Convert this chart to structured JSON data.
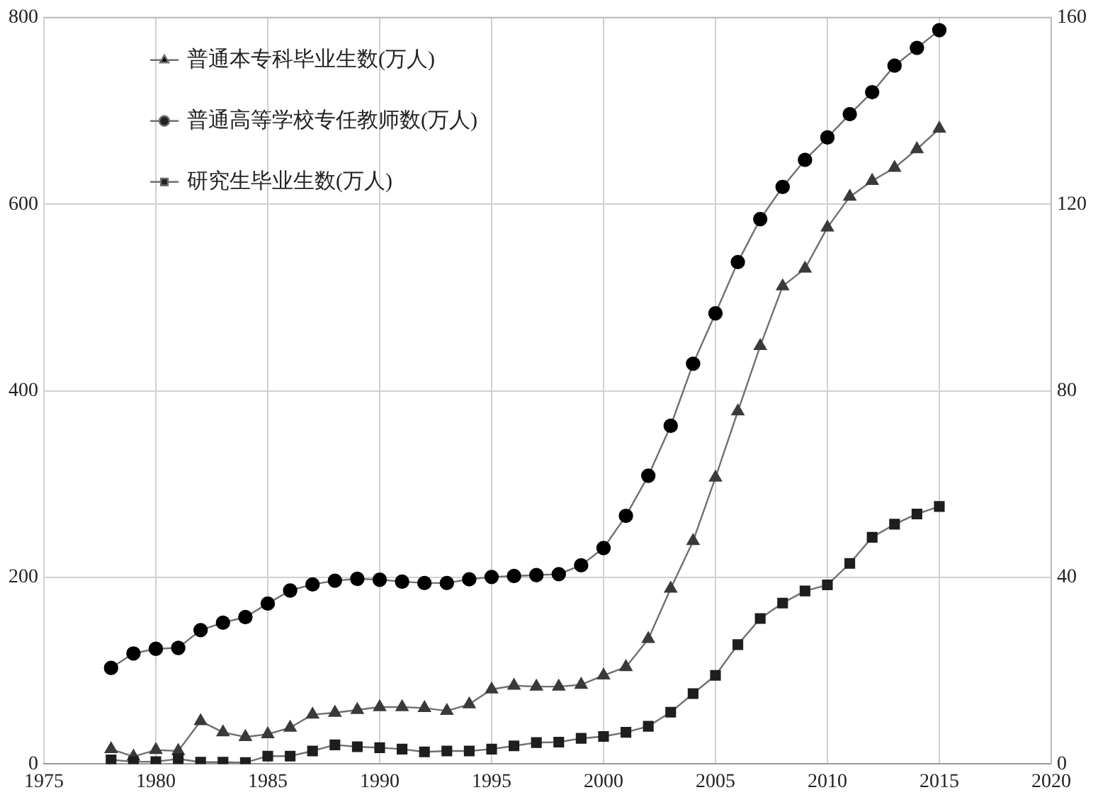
{
  "chart_data": {
    "type": "line",
    "x": [
      1978,
      1979,
      1980,
      1981,
      1982,
      1983,
      1984,
      1985,
      1986,
      1987,
      1988,
      1989,
      1990,
      1991,
      1992,
      1993,
      1994,
      1995,
      1996,
      1997,
      1998,
      1999,
      2000,
      2001,
      2002,
      2003,
      2004,
      2005,
      2006,
      2007,
      2008,
      2009,
      2010,
      2011,
      2012,
      2013,
      2014,
      2015
    ],
    "series": [
      {
        "name": "普通本专科毕业生数(万人)",
        "color": "#3a3a3a",
        "marker": "triangle",
        "values": [
          16,
          8,
          15,
          14,
          46,
          34,
          29,
          32,
          39,
          53,
          55,
          58,
          61,
          61,
          60,
          57,
          64,
          80,
          84,
          83,
          83,
          85,
          95,
          104,
          134,
          188,
          239,
          307,
          378,
          448,
          512,
          531,
          575,
          608,
          625,
          639,
          659,
          681
        ]
      },
      {
        "name": "普通高等学校专任教师数(万人)",
        "color": "#000000",
        "marker": "circle",
        "axis": "y2",
        "values": [
          20.6,
          23.7,
          24.7,
          24.9,
          28.7,
          30.3,
          31.5,
          34.4,
          37.2,
          38.5,
          39.3,
          39.7,
          39.5,
          39.1,
          38.8,
          38.8,
          39.6,
          40.1,
          40.3,
          40.5,
          40.7,
          42.6,
          46.3,
          53.2,
          61.8,
          72.5,
          85.8,
          96.6,
          107.6,
          116.8,
          123.7,
          129.5,
          134.3,
          139.3,
          144,
          149.7,
          153.5,
          157.3
        ]
      },
      {
        "name": "研究生毕业生数(万人)",
        "color": "#1e1e1e",
        "marker": "square",
        "axis": "y2",
        "values": [
          0.9,
          0.5,
          0.5,
          1.1,
          0.4,
          0.4,
          0.3,
          1.7,
          1.7,
          2.8,
          4.1,
          3.7,
          3.5,
          3.2,
          2.6,
          2.8,
          2.8,
          3.2,
          3.9,
          4.6,
          4.7,
          5.5,
          5.9,
          6.8,
          8.1,
          11.1,
          15.1,
          19,
          25.6,
          31.2,
          34.5,
          37.1,
          38.4,
          43,
          48.6,
          51.4,
          53.6,
          55.2
        ]
      }
    ],
    "xlim": [
      1975,
      2020
    ],
    "xticks": [
      1975,
      1980,
      1985,
      1990,
      1995,
      2000,
      2005,
      2010,
      2015,
      2020
    ],
    "ylim": [
      0,
      800
    ],
    "yticks": [
      0,
      200,
      400,
      600,
      800
    ],
    "y2lim": [
      0,
      160
    ],
    "y2ticks": [
      0,
      40,
      80,
      120,
      160
    ],
    "grid": true,
    "legend": "top left",
    "line_style": "solid"
  }
}
